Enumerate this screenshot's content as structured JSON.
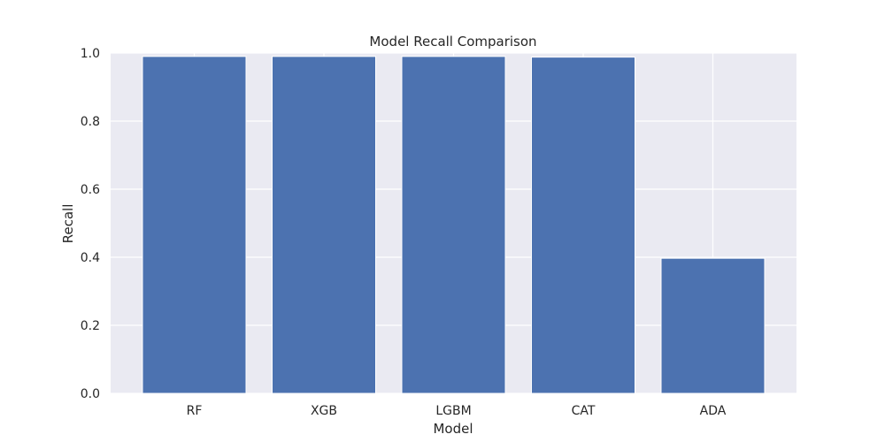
{
  "chart_data": {
    "type": "bar",
    "title": "Model Recall Comparison",
    "xlabel": "Model",
    "ylabel": "Recall",
    "categories": [
      "RF",
      "XGB",
      "LGBM",
      "CAT",
      "ADA"
    ],
    "values": [
      0.99,
      0.99,
      0.99,
      0.988,
      0.397
    ],
    "ylim": [
      0,
      1.0
    ],
    "yticks": [
      "0.0",
      "0.2",
      "0.4",
      "0.6",
      "0.8",
      "1.0"
    ],
    "grid": true,
    "bar_color": "#4c72b0",
    "background_color": "#eaeaf2"
  }
}
